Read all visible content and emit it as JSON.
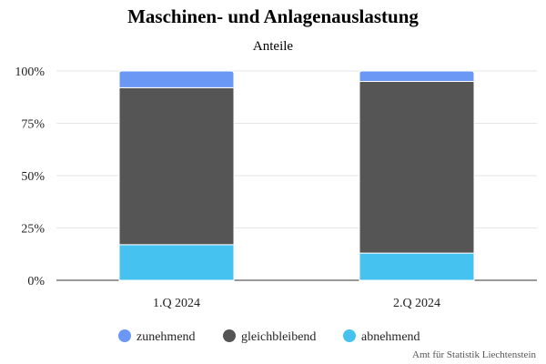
{
  "chart_data": {
    "type": "bar",
    "stacked": true,
    "title": "Maschinen- und Anlagenauslastung",
    "subtitle": "Anteile",
    "categories": [
      "1.Q 2024",
      "2.Q 2024"
    ],
    "series": [
      {
        "name": "zunehmend",
        "color": "#6b97f5",
        "values": [
          8,
          5
        ]
      },
      {
        "name": "gleichbleibend",
        "color": "#555555",
        "values": [
          75,
          82
        ]
      },
      {
        "name": "abnehmend",
        "color": "#45c2f0",
        "values": [
          17,
          13
        ]
      }
    ],
    "stack_order": [
      "abnehmend",
      "gleichbleibend",
      "zunehmend"
    ],
    "ylim": [
      0,
      100
    ],
    "yticks": [
      "0%",
      "25%",
      "50%",
      "75%",
      "100%"
    ],
    "grid": true,
    "legend_position": "bottom"
  },
  "credits": "Amt für Statistik Liechtenstein"
}
